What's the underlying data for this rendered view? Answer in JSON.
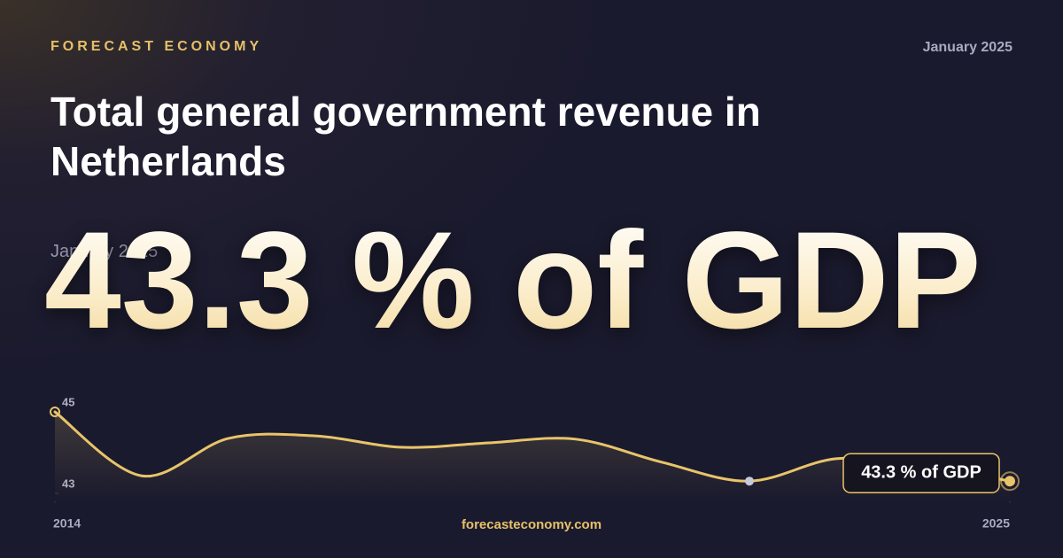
{
  "brand": "FORECAST ECONOMY",
  "date": "January 2025",
  "footer": "forecasteconomy.com",
  "chart_data": {
    "type": "line",
    "title": "Total general government revenue in Netherlands",
    "annotation": "43.3 % of GDP",
    "x": [
      2014,
      2015,
      2016,
      2017,
      2018,
      2019,
      2020,
      2021,
      2022,
      2023,
      2024,
      2025
    ],
    "series": [
      {
        "color": "#e8c46a",
        "values": [
          45,
          43.43,
          44.35,
          44.41,
          44.13,
          44.24,
          44.33,
          43.76,
          43.3,
          43.85,
          43.7,
          43.3
        ]
      }
    ],
    "xlim": [
      2014,
      2025
    ],
    "xticks": [
      2014,
      2025
    ],
    "ylim": [
      43,
      45
    ],
    "yticks": [
      43,
      45
    ]
  }
}
